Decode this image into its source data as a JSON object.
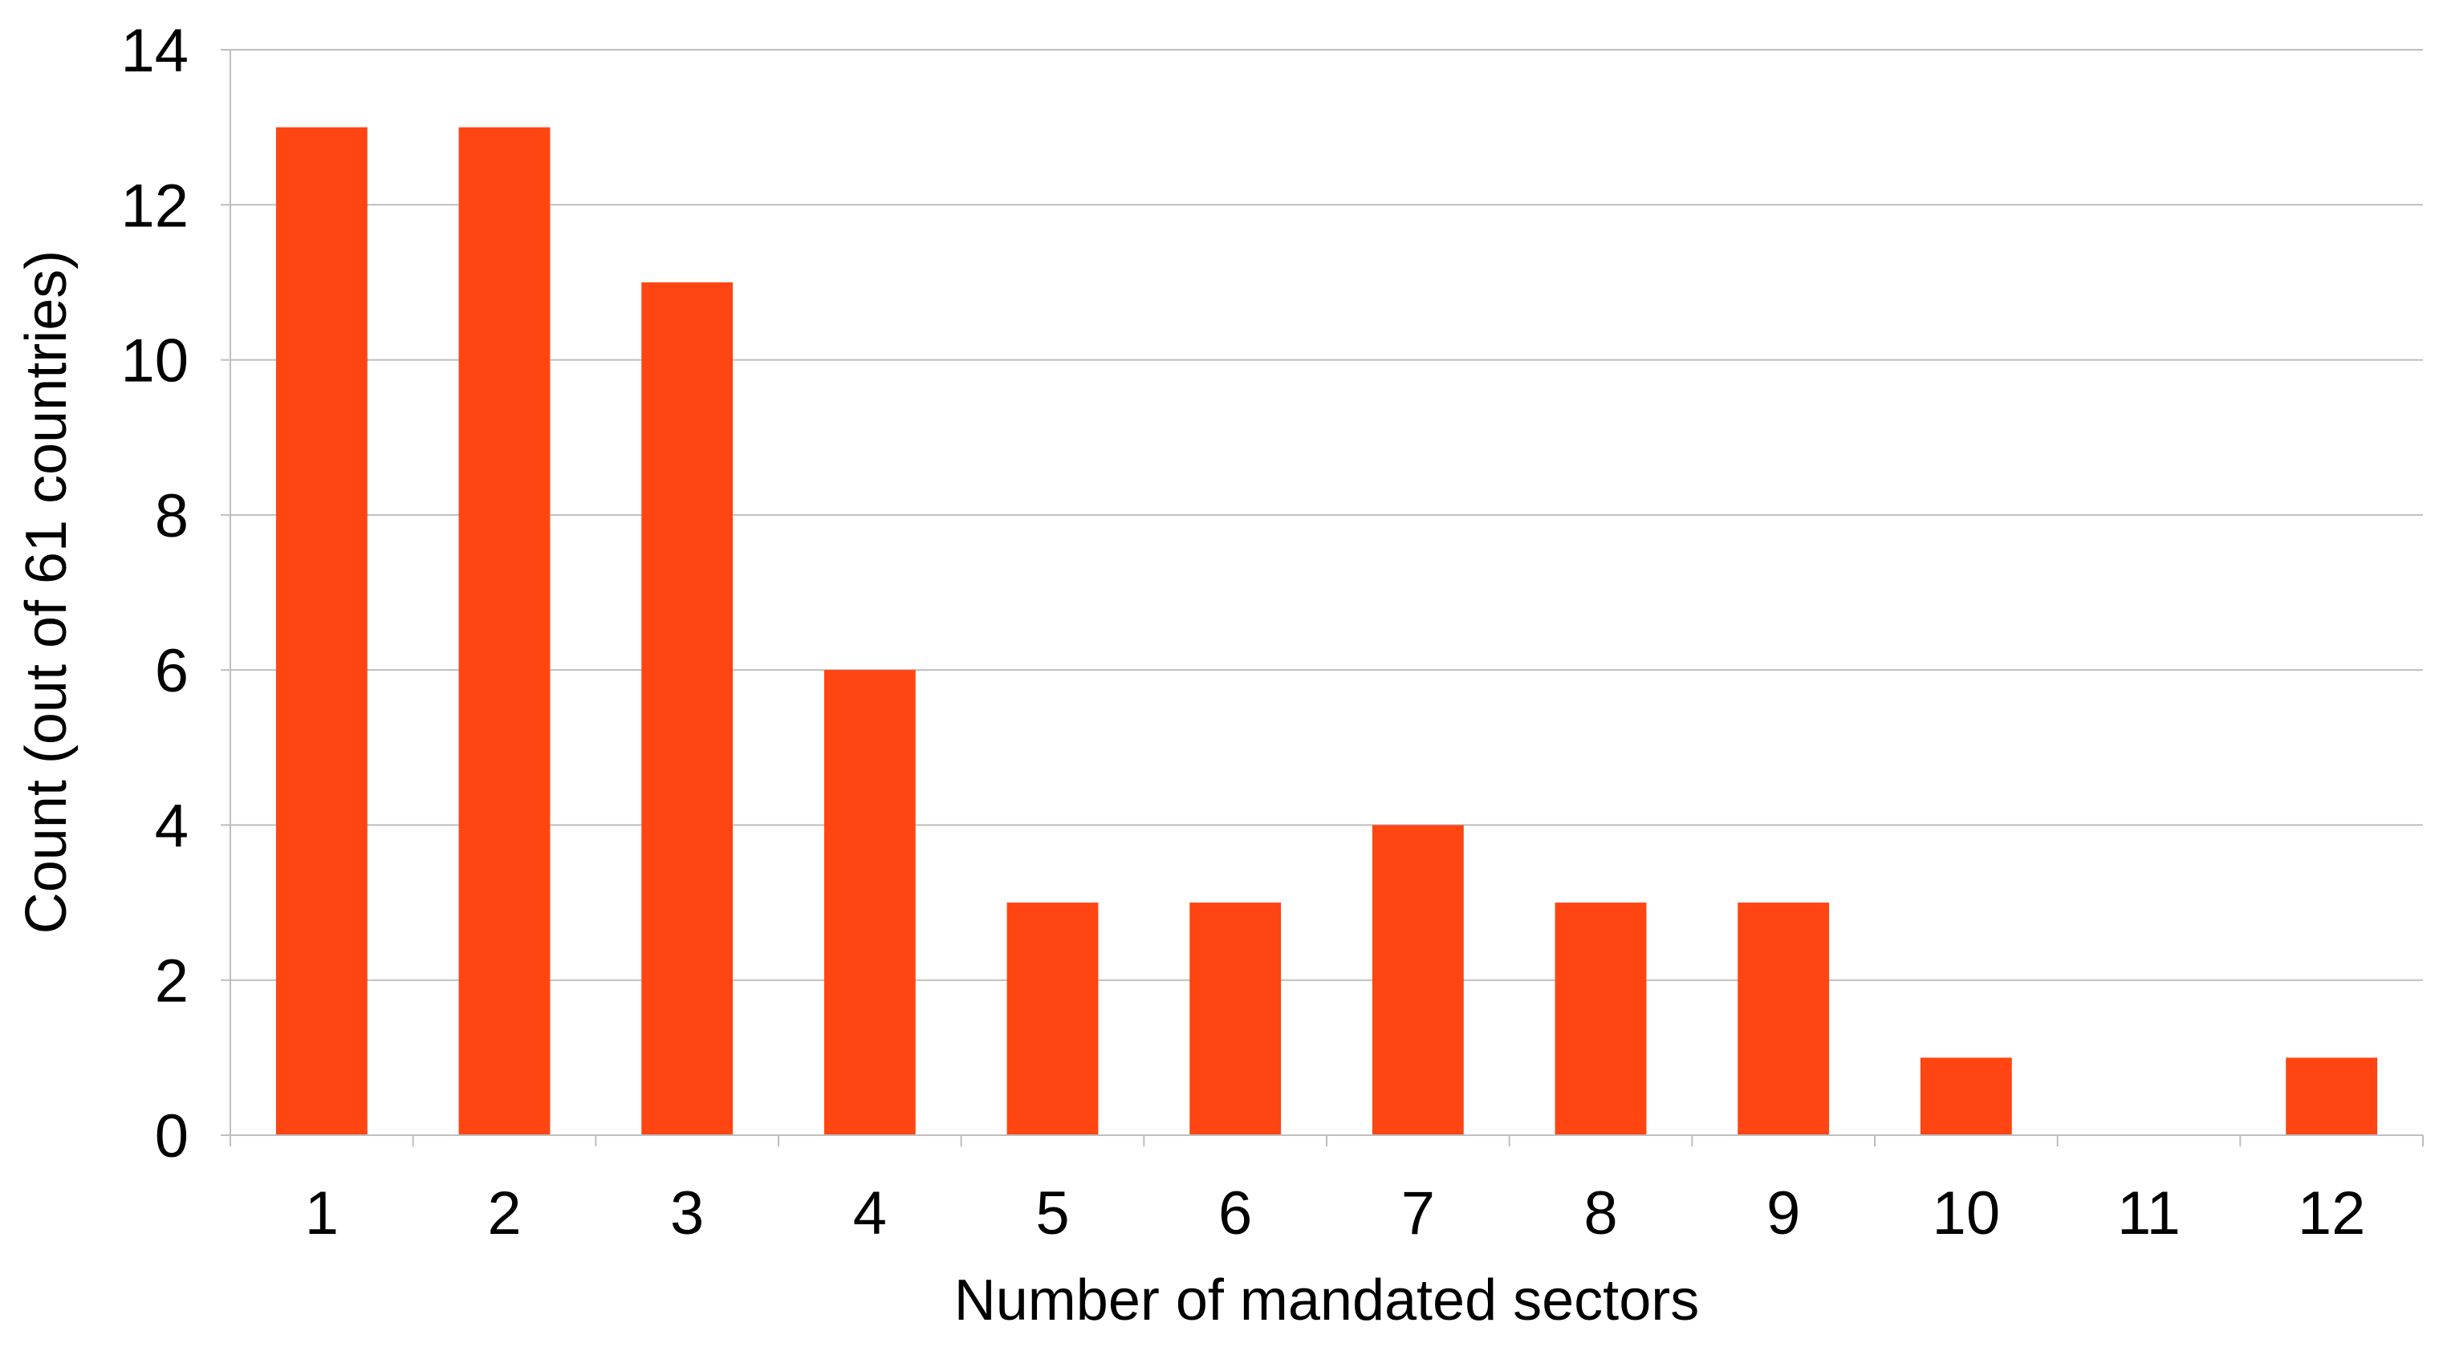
{
  "chart_data": {
    "type": "bar",
    "title": "",
    "xlabel": "Number of mandated sectors",
    "ylabel": "Count (out of 61 countries)",
    "categories": [
      "1",
      "2",
      "3",
      "4",
      "5",
      "6",
      "7",
      "8",
      "9",
      "10",
      "11",
      "12"
    ],
    "values": [
      13,
      13,
      11,
      6,
      3,
      3,
      4,
      3,
      3,
      1,
      0,
      1
    ],
    "ylim": [
      0,
      14
    ],
    "yticks": [
      "0",
      "2",
      "4",
      "6",
      "8",
      "10",
      "12",
      "14"
    ],
    "grid": true,
    "legend": "none",
    "colors": {
      "bar": "#FF4512",
      "grid": "#BEBEBE"
    }
  }
}
